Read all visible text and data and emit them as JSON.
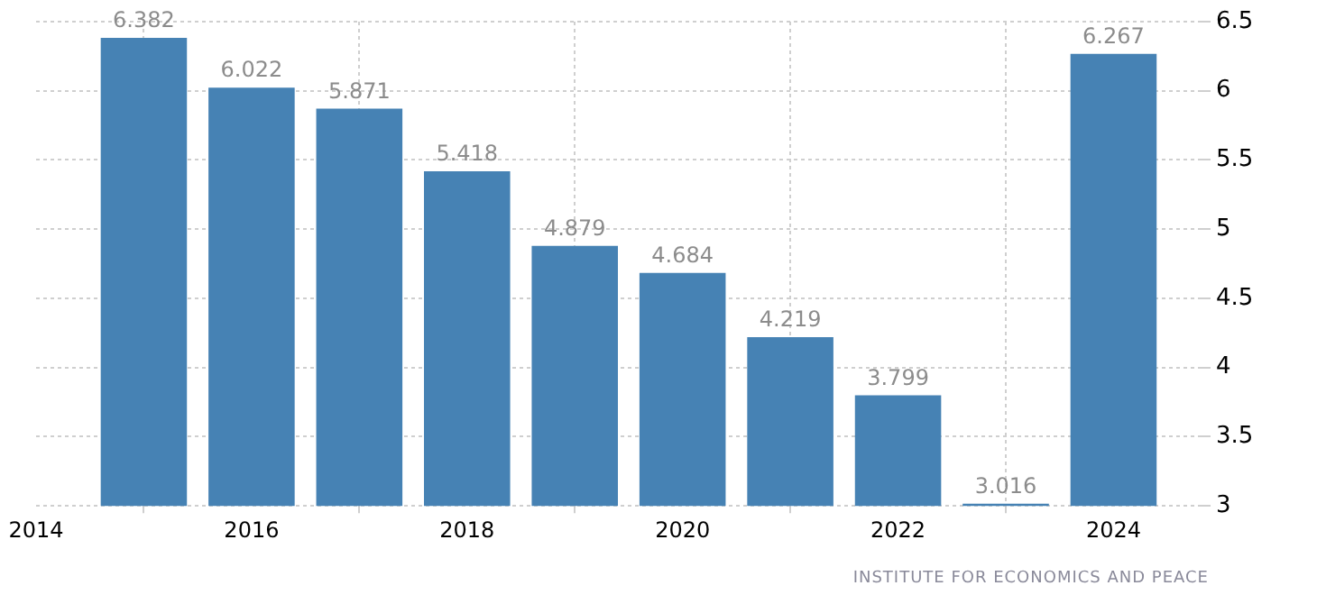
{
  "chart_data": {
    "type": "bar",
    "x": [
      2015,
      2016,
      2017,
      2018,
      2019,
      2020,
      2021,
      2022,
      2023,
      2024
    ],
    "values": [
      6.382,
      6.022,
      5.871,
      5.418,
      4.879,
      4.684,
      4.219,
      3.799,
      3.016,
      6.267
    ],
    "color": "#4682b4",
    "xlim": [
      2014,
      2024.8
    ],
    "xticks": [
      2014,
      2016,
      2018,
      2020,
      2022,
      2024
    ],
    "ylim": [
      3,
      6.5
    ],
    "yticks": [
      3,
      3.5,
      4,
      4.5,
      5,
      5.5,
      6,
      6.5
    ],
    "grid": true,
    "data_labels": true,
    "annotations": [
      "INSTITUTE FOR ECONOMICS AND PEACE"
    ]
  }
}
